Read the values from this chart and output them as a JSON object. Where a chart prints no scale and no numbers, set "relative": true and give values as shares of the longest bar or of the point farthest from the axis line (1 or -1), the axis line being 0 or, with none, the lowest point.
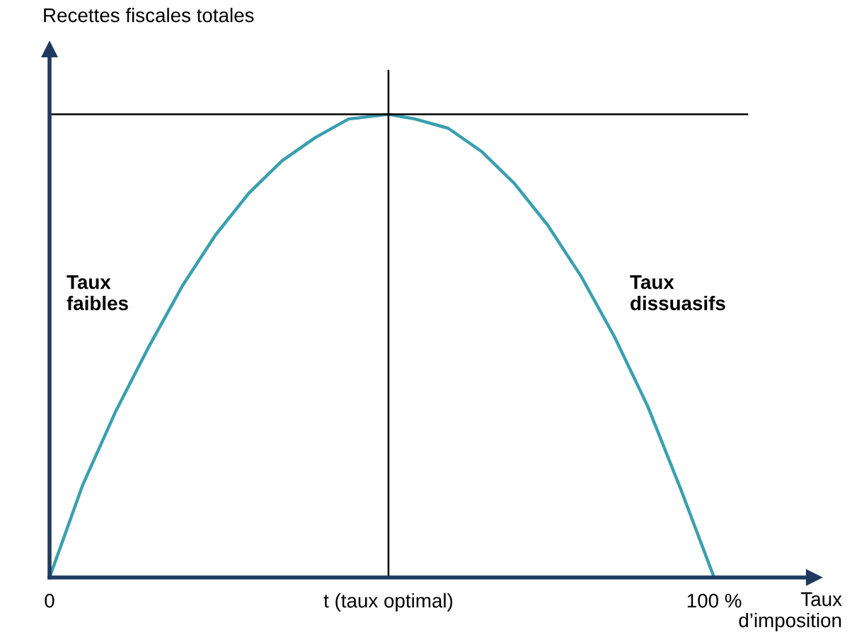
{
  "chart_data": {
    "type": "line",
    "relative": true,
    "ylabel": "Recettes fiscales totales",
    "xlabel": "Taux\nd’imposition",
    "x": [
      0,
      5,
      10,
      15,
      20,
      25,
      30,
      35,
      40,
      45,
      51,
      55,
      60,
      65,
      70,
      75,
      80,
      85,
      90,
      95,
      100
    ],
    "series": [
      {
        "color": "#3a9fb0",
        "values": [
          0,
          0.2,
          0.36,
          0.5,
          0.63,
          0.74,
          0.83,
          0.9,
          0.95,
          0.99,
          1,
          0.99,
          0.97,
          0.92,
          0.85,
          0.76,
          0.65,
          0.52,
          0.37,
          0.19,
          0
        ]
      },
      {
        "type": "line",
        "color": "#000000",
        "x": [
          0,
          105
        ],
        "values": [
          1,
          1
        ]
      }
    ],
    "xlim": [
      0,
      115
    ],
    "xticks": [
      0,
      {
        "value": 51,
        "label": "t (taux optimal)"
      },
      {
        "value": 100,
        "label": "100 %"
      }
    ],
    "ref_lines": [
      {
        "axis": "x",
        "value": 51,
        "color": "#000000"
      }
    ],
    "annotations": [
      "Taux\nfaibles",
      "Taux\ndissuasifs"
    ],
    "grid": false,
    "legend": false,
    "marker": "none",
    "line_style": "solid"
  }
}
